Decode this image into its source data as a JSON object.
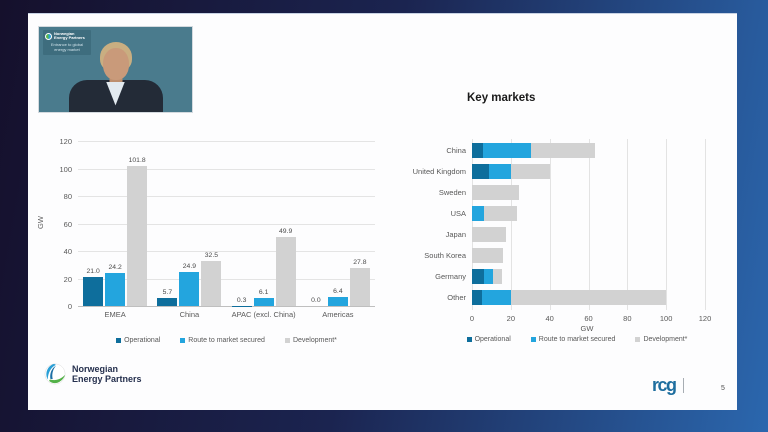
{
  "frame": {
    "page_number": "5"
  },
  "webcam": {
    "badge": {
      "org_line1": "Norwegian",
      "org_line2": "Energy Partners",
      "tagline_line1": "Entrance to global",
      "tagline_line2": "energy market"
    }
  },
  "footer": {
    "nep_logo": {
      "line1": "Norwegian",
      "line2": "Energy Partners"
    },
    "rcg_logo_text": "rcg"
  },
  "colors": {
    "operational": "#0e6e9c",
    "route_to_market": "#23a5de",
    "development": "#d2d2d2",
    "video_background": "#4a7b8d",
    "frame_left": "#15102c",
    "frame_right": "#2b67ae"
  },
  "chart_data": [
    {
      "type": "bar",
      "orientation": "vertical-grouped",
      "title": "",
      "ylabel": "GW",
      "ylim": [
        0,
        120
      ],
      "yticks": [
        0,
        20,
        40,
        60,
        80,
        100,
        120
      ],
      "grid": true,
      "legend_position": "bottom",
      "categories": [
        "EMEA",
        "China",
        "APAC (excl. China)",
        "Americas"
      ],
      "series": [
        {
          "name": "Operational",
          "color": "#0e6e9c",
          "values": [
            21.0,
            5.7,
            0.3,
            0.0
          ]
        },
        {
          "name": "Route to market secured",
          "color": "#23a5de",
          "values": [
            24.2,
            24.9,
            6.1,
            6.4
          ]
        },
        {
          "name": "Development*",
          "color": "#d2d2d2",
          "values": [
            101.8,
            32.5,
            49.9,
            27.8
          ]
        }
      ],
      "value_label_decimals": 1
    },
    {
      "type": "bar",
      "orientation": "horizontal-stacked",
      "title": "Key markets",
      "xlabel": "GW",
      "xlim": [
        0,
        120
      ],
      "xticks": [
        0,
        20,
        40,
        60,
        80,
        100,
        120
      ],
      "grid": true,
      "legend_position": "bottom",
      "categories": [
        "China",
        "United Kingdom",
        "Sweden",
        "USA",
        "Japan",
        "South Korea",
        "Germany",
        "Other"
      ],
      "series": [
        {
          "name": "Operational",
          "color": "#0e6e9c",
          "values": [
            5.7,
            9,
            0,
            0,
            0,
            0,
            6,
            5
          ]
        },
        {
          "name": "Route to market secured",
          "color": "#23a5de",
          "values": [
            24.9,
            11,
            0,
            6,
            0,
            0,
            5,
            15
          ]
        },
        {
          "name": "Development*",
          "color": "#d2d2d2",
          "values": [
            32.5,
            20,
            24,
            17,
            17.5,
            16,
            4.5,
            80
          ]
        }
      ]
    }
  ]
}
